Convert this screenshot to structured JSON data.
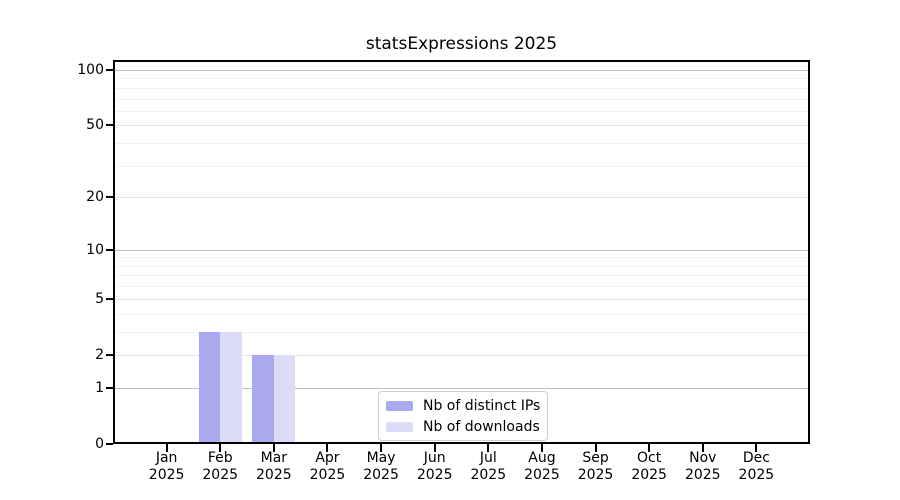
{
  "chart_data": {
    "type": "bar",
    "title": "statsExpressions 2025",
    "categories": [
      "Jan 2025",
      "Feb 2025",
      "Mar 2025",
      "Apr 2025",
      "May 2025",
      "Jun 2025",
      "Jul 2025",
      "Aug 2025",
      "Sep 2025",
      "Oct 2025",
      "Nov 2025",
      "Dec 2025"
    ],
    "x_tick_months": [
      "Jan",
      "Feb",
      "Mar",
      "Apr",
      "May",
      "Jun",
      "Jul",
      "Aug",
      "Sep",
      "Oct",
      "Nov",
      "Dec"
    ],
    "x_tick_year": "2025",
    "series": [
      {
        "name": "Nb of distinct IPs",
        "color": "#a9a9f0",
        "values": [
          0,
          3,
          2,
          0,
          0,
          0,
          0,
          0,
          0,
          0,
          0,
          0
        ]
      },
      {
        "name": "Nb of downloads",
        "color": "#dcdcf8",
        "values": [
          0,
          3,
          2,
          0,
          0,
          0,
          0,
          0,
          0,
          0,
          0,
          0
        ]
      }
    ],
    "yscale": "log1p",
    "y_tick_labels": [
      "0",
      "1",
      "2",
      "5",
      "10",
      "20",
      "50",
      "100"
    ],
    "y_tick_values": [
      0,
      1,
      2,
      5,
      10,
      20,
      50,
      100
    ],
    "y_grid_major": [
      1,
      10,
      100
    ],
    "y_grid_soft": [
      2,
      5,
      20,
      50
    ],
    "y_grid_minor": [
      3,
      4,
      6,
      7,
      8,
      9,
      30,
      40,
      60,
      70,
      80,
      90
    ],
    "ylim": [
      0,
      113
    ],
    "grid": true,
    "legend_position": "bottom-center"
  },
  "colors": {
    "bar_distinct_ips": "#a9a9f0",
    "bar_downloads": "#dcdcf8",
    "grid_major": "#bfbfbf",
    "grid_soft": "#e4e4e4",
    "grid_minor": "#f1f1f1",
    "axis": "#000000",
    "background": "#ffffff",
    "legend_border": "#cfcfcf"
  }
}
